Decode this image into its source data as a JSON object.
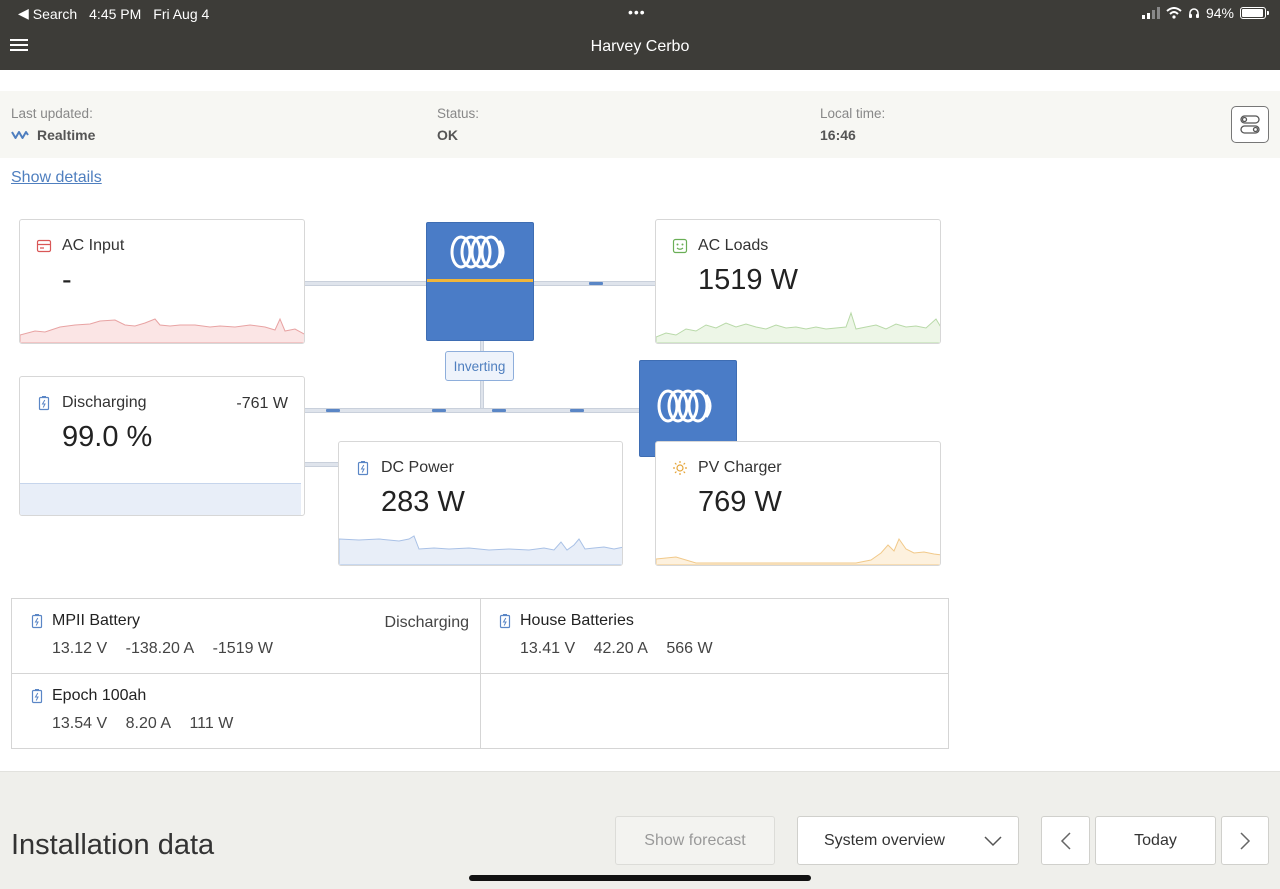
{
  "status_bar": {
    "back_label": "Search",
    "time": "4:45 PM",
    "date": "Fri Aug 4",
    "more": "•••",
    "battery_percent": "94%",
    "battery_fraction": 0.94
  },
  "app": {
    "title": "Harvey Cerbo"
  },
  "info": {
    "last_updated_label": "Last updated:",
    "last_updated_value": "Realtime",
    "status_label": "Status:",
    "status_value": "OK",
    "local_time_label": "Local time:",
    "local_time_value": "16:46"
  },
  "show_details": "Show details",
  "diagram": {
    "ac_input": {
      "name": "AC Input",
      "value": "-"
    },
    "ac_loads": {
      "name": "AC Loads",
      "value": "1519 W"
    },
    "inverter_state": "Inverting",
    "battery": {
      "name": "Discharging",
      "value": "99.0 %",
      "power": "-761 W",
      "soc_fraction": 0.99
    },
    "dc_power": {
      "name": "DC Power",
      "value": "283 W"
    },
    "pv_charger": {
      "name": "PV Charger",
      "value": "769 W"
    }
  },
  "batteries": [
    {
      "name": "MPII Battery",
      "voltage": "13.12 V",
      "current": "-138.20 A",
      "power": "-1519 W",
      "state": "Discharging"
    },
    {
      "name": "House Batteries",
      "voltage": "13.41 V",
      "current": "42.20 A",
      "power": "566 W",
      "state": ""
    },
    {
      "name": "Epoch 100ah",
      "voltage": "13.54 V",
      "current": "8.20 A",
      "power": "111 W",
      "state": ""
    }
  ],
  "footer": {
    "heading": "Installation data",
    "forecast_button": "Show forecast",
    "view_select": "System overview",
    "today_button": "Today"
  },
  "colors": {
    "header_bg": "#3d3c38",
    "victron_blue": "#4a7cc7",
    "ac_input_red": "#e8a3a3",
    "ac_loads_green": "#b8d9a8",
    "dc_blue": "#a9c1e6",
    "pv_orange": "#f1c98a",
    "link_blue": "#4f7fbf"
  }
}
